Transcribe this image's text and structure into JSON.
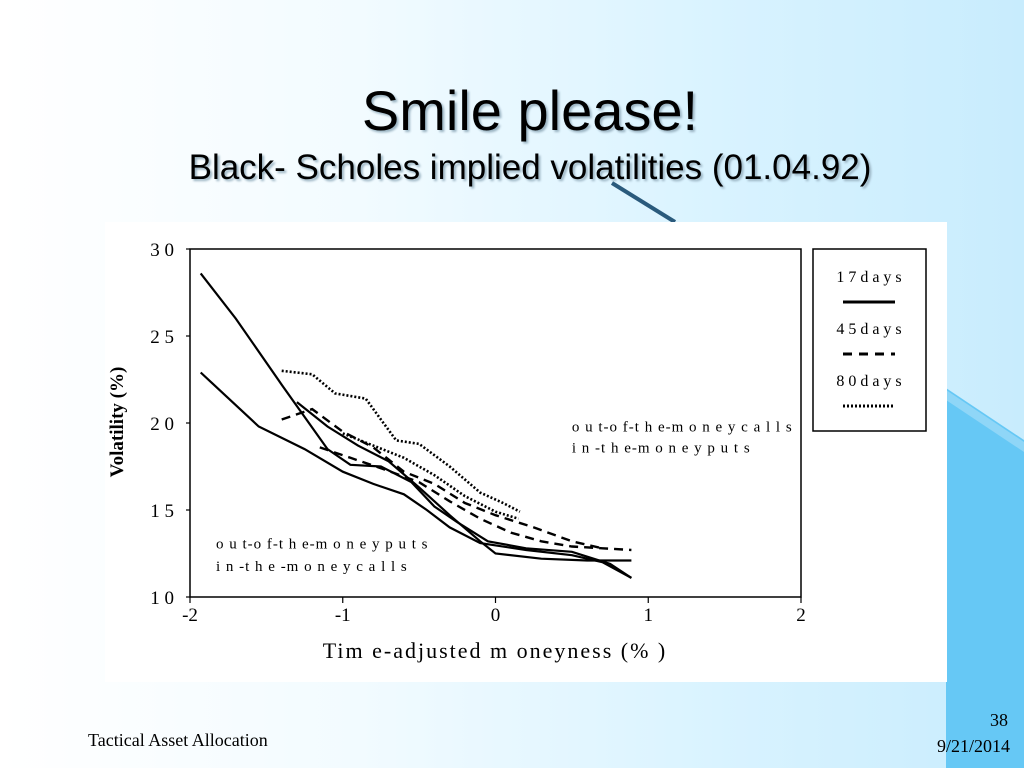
{
  "slide": {
    "title": "Smile please!",
    "subtitle": "Black- Scholes implied volatilities (01.04.92)",
    "footer_left": "Tactical Asset Allocation",
    "page_number": "38",
    "date": "9/21/2014"
  },
  "colors": {
    "accent_triangle": "#66c8f5",
    "accent_line": "#2a5a7c"
  },
  "chart_data": {
    "type": "line",
    "xlabel": "Tim e-adjusted  m oneyness (% )",
    "ylabel": "Volatility (%)",
    "xlim": [
      -2,
      2
    ],
    "ylim": [
      10,
      30
    ],
    "x_ticks": [
      {
        "value": -2,
        "label": "-2"
      },
      {
        "value": -1,
        "label": "-1"
      },
      {
        "value": 0,
        "label": "0"
      },
      {
        "value": 1,
        "label": "1"
      },
      {
        "value": 2,
        "label": "2"
      }
    ],
    "y_ticks": [
      {
        "value": 10,
        "label": "1 0"
      },
      {
        "value": 15,
        "label": "1 5"
      },
      {
        "value": 20,
        "label": "2 0"
      },
      {
        "value": 25,
        "label": "2 5"
      },
      {
        "value": 30,
        "label": "3 0"
      }
    ],
    "grid": false,
    "legend_position": "right-outside",
    "series": [
      {
        "name": "1 7 d a y s",
        "style": "solid",
        "x": [
          -1.93,
          -1.7,
          -1.4,
          -1.1,
          -0.95,
          -0.75,
          -0.55,
          -0.4,
          -0.25,
          -0.05,
          0.2,
          0.5,
          0.75,
          0.89
        ],
        "y": [
          28.6,
          26.0,
          22.2,
          18.5,
          17.6,
          17.5,
          16.6,
          15.2,
          14.3,
          13.2,
          12.8,
          12.6,
          11.9,
          11.1
        ]
      },
      {
        "name": "1 7 d a y s",
        "style": "solid",
        "x": [
          -1.93,
          -1.55,
          -1.25,
          -1.0,
          -0.8,
          -0.6,
          -0.45,
          -0.3,
          -0.1,
          0.2,
          0.5,
          0.7,
          0.89
        ],
        "y": [
          22.9,
          19.8,
          18.5,
          17.2,
          16.5,
          15.9,
          15.0,
          14.0,
          13.1,
          12.7,
          12.4,
          12.0,
          11.1
        ]
      },
      {
        "name": "1 7 d a y s",
        "style": "solid",
        "x": [
          -1.3,
          -1.1,
          -0.9,
          -0.7,
          -0.5,
          -0.3,
          -0.1,
          0.0,
          0.3,
          0.6,
          0.89
        ],
        "y": [
          21.2,
          19.8,
          18.7,
          17.8,
          16.3,
          14.7,
          13.2,
          12.5,
          12.2,
          12.1,
          12.1
        ]
      },
      {
        "name": "4 5  d a y s",
        "style": "dashed",
        "x": [
          -1.15,
          -0.95,
          -0.75,
          -0.5,
          -0.3,
          -0.1,
          0.1,
          0.3,
          0.5,
          0.7,
          0.89
        ],
        "y": [
          18.6,
          18.0,
          17.4,
          16.6,
          15.5,
          14.5,
          13.7,
          13.2,
          12.9,
          12.8,
          12.7
        ]
      },
      {
        "name": "4 5  d a y s",
        "style": "dashed",
        "x": [
          -1.4,
          -1.2,
          -1.0,
          -0.8,
          -0.6,
          -0.4,
          -0.2,
          0.0,
          0.25,
          0.5,
          0.7
        ],
        "y": [
          20.2,
          20.8,
          19.5,
          18.6,
          17.2,
          16.5,
          15.4,
          14.7,
          14.0,
          13.2,
          12.8
        ]
      },
      {
        "name": "8 0  d a y s",
        "style": "dotted",
        "x": [
          -1.4,
          -1.2,
          -1.05,
          -0.85,
          -0.75,
          -0.65,
          -0.5,
          -0.3,
          -0.1,
          0.05,
          0.16
        ],
        "y": [
          23.0,
          22.8,
          21.7,
          21.4,
          20.2,
          19.0,
          18.8,
          17.5,
          16.0,
          15.4,
          14.9
        ]
      },
      {
        "name": "8 0  d a y s",
        "style": "dotted",
        "x": [
          -1.0,
          -0.8,
          -0.6,
          -0.4,
          -0.2,
          0.0,
          0.15
        ],
        "y": [
          19.4,
          18.7,
          18.0,
          17.0,
          15.8,
          14.9,
          14.5
        ]
      }
    ],
    "legend": [
      {
        "label": "1 7 d a y s",
        "style": "solid"
      },
      {
        "label": "4 5  d a y s",
        "style": "dashed"
      },
      {
        "label": "8 0  d a y s",
        "style": "dotted"
      }
    ],
    "annotations": [
      {
        "text": "o u t-o f-t h e-m o n e y  c a l l s",
        "x": 0.5,
        "y": 19.5
      },
      {
        "text": "i n -t h e-m o n e y  p u t s",
        "x": 0.5,
        "y": 18.3
      },
      {
        "text": "o u t-o f-t h e-m o n e y  p u t s",
        "x": -1.83,
        "y": 12.8
      },
      {
        "text": "i n -t h e -m o n e y  c a l l s",
        "x": -1.83,
        "y": 11.5
      }
    ]
  }
}
